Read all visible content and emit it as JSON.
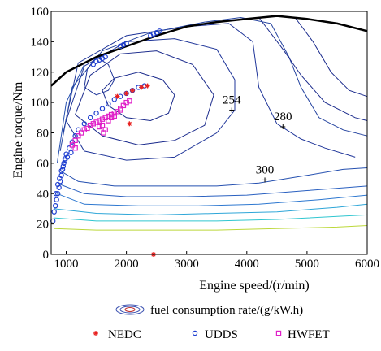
{
  "chart_data": {
    "type": "scatter",
    "xlabel": "Engine speed/(r/min)",
    "ylabel": "Engine torque/Nm",
    "xlim": [
      750,
      6000
    ],
    "ylim": [
      0,
      160
    ],
    "xticks": [
      1000,
      2000,
      3000,
      4000,
      5000,
      6000
    ],
    "yticks": [
      0,
      20,
      40,
      60,
      80,
      100,
      120,
      140,
      160
    ],
    "grid": false,
    "legend_position": "bottom",
    "max_torque_curve": {
      "x": [
        750,
        1000,
        1500,
        2000,
        2500,
        3000,
        3500,
        4000,
        4500,
        5000,
        5500,
        6000
      ],
      "y": [
        111,
        120,
        130,
        137,
        144,
        150,
        153,
        155,
        157,
        155,
        152,
        147
      ]
    },
    "contour_labels": [
      {
        "text": "254",
        "x": 3750,
        "y": 95
      },
      {
        "text": "280",
        "x": 4600,
        "y": 84
      },
      {
        "text": "300",
        "x": 4300,
        "y": 49
      }
    ],
    "contour_legend_label": "fuel consumption rate/(g/kW.h)",
    "series": [
      {
        "name": "NEDC",
        "marker": "asterisk",
        "color": "#e8201f",
        "points": [
          [
            1850,
            104
          ],
          [
            2000,
            106
          ],
          [
            2100,
            108
          ],
          [
            2250,
            110
          ],
          [
            2350,
            111
          ],
          [
            2050,
            86
          ],
          [
            2450,
            0
          ]
        ]
      },
      {
        "name": "UDDS",
        "marker": "circle",
        "color": "#1f3fd0",
        "points": [
          [
            780,
            22
          ],
          [
            800,
            28
          ],
          [
            820,
            32
          ],
          [
            840,
            36
          ],
          [
            860,
            40
          ],
          [
            880,
            44
          ],
          [
            900,
            48
          ],
          [
            920,
            52
          ],
          [
            940,
            56
          ],
          [
            960,
            60
          ],
          [
            980,
            63
          ],
          [
            1000,
            66
          ],
          [
            1050,
            70
          ],
          [
            1100,
            74
          ],
          [
            1150,
            78
          ],
          [
            1200,
            82
          ],
          [
            1300,
            86
          ],
          [
            1400,
            90
          ],
          [
            1500,
            93
          ],
          [
            1600,
            96
          ],
          [
            1700,
            99
          ],
          [
            1800,
            102
          ],
          [
            1900,
            104
          ],
          [
            2000,
            106
          ],
          [
            2100,
            108
          ],
          [
            2200,
            110
          ],
          [
            2300,
            111
          ],
          [
            830,
            40
          ],
          [
            860,
            46
          ],
          [
            890,
            50
          ],
          [
            920,
            55
          ],
          [
            950,
            58
          ],
          [
            980,
            62
          ],
          [
            1020,
            64
          ],
          [
            1080,
            67
          ],
          [
            1450,
            125
          ],
          [
            1500,
            127
          ],
          [
            1550,
            128
          ],
          [
            1600,
            129
          ],
          [
            1650,
            130
          ],
          [
            1900,
            137
          ],
          [
            1950,
            138
          ],
          [
            2000,
            139
          ],
          [
            2400,
            144
          ],
          [
            2450,
            145
          ],
          [
            2500,
            146
          ],
          [
            2550,
            147
          ]
        ]
      },
      {
        "name": "HWFET",
        "marker": "square",
        "color": "#e020c8",
        "points": [
          [
            1100,
            72
          ],
          [
            1150,
            75
          ],
          [
            1200,
            78
          ],
          [
            1250,
            80
          ],
          [
            1300,
            82
          ],
          [
            1350,
            83
          ],
          [
            1400,
            85
          ],
          [
            1450,
            86
          ],
          [
            1500,
            87
          ],
          [
            1550,
            88
          ],
          [
            1600,
            89
          ],
          [
            1650,
            90
          ],
          [
            1700,
            91
          ],
          [
            1750,
            92
          ],
          [
            1800,
            93
          ],
          [
            1850,
            94
          ],
          [
            1900,
            96
          ],
          [
            1950,
            98
          ],
          [
            2000,
            100
          ],
          [
            2050,
            101
          ],
          [
            1600,
            85
          ],
          [
            1650,
            82
          ],
          [
            1550,
            84
          ],
          [
            1700,
            88
          ],
          [
            1750,
            90
          ],
          [
            1900,
            95
          ],
          [
            1150,
            70
          ],
          [
            1620,
            80
          ],
          [
            1800,
            91
          ]
        ]
      }
    ]
  }
}
